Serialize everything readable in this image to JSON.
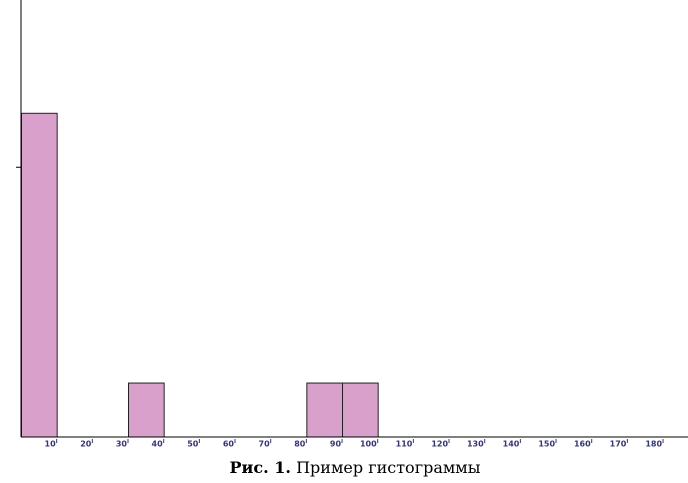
{
  "chart_data": {
    "type": "histogram",
    "caption_label": "Рис. 1.",
    "caption": "Пример гистограммы",
    "bins": [
      0,
      10,
      20,
      30,
      40,
      50,
      60,
      70,
      80,
      90,
      100,
      110,
      120,
      130,
      140,
      150,
      160,
      170,
      180
    ],
    "values": [
      6,
      0,
      0,
      1,
      0,
      0,
      0,
      0,
      1,
      1,
      0,
      0,
      0,
      0,
      0,
      0,
      0,
      0
    ],
    "color": "#d9a0cc",
    "xlim": [
      0,
      187
    ],
    "xticks": [
      10,
      20,
      30,
      40,
      50,
      60,
      70,
      80,
      90,
      100,
      110,
      120,
      130,
      140,
      150,
      160,
      170,
      180
    ],
    "ylim": [
      0,
      8.1
    ],
    "yticks": [
      5
    ]
  }
}
